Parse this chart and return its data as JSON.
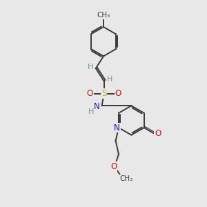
{
  "background_color": "#e8e8e8",
  "bond_color": "#3a3a3a",
  "bond_width": 1.4,
  "colors": {
    "C": "#3a3a3a",
    "H": "#6a9a8a",
    "N": "#1414cc",
    "O": "#cc1414",
    "S": "#b8b800"
  },
  "afs": 8.5,
  "hfs": 8.0,
  "small_fs": 7.5
}
